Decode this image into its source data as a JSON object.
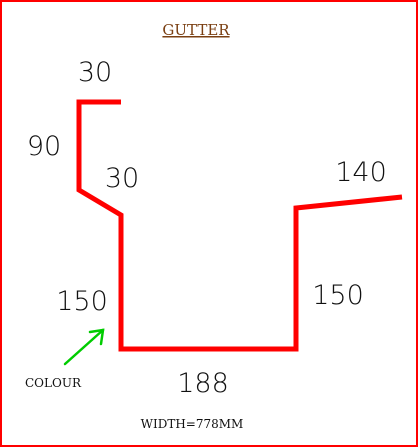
{
  "title": "GUTTER",
  "dimensions": {
    "top_return": "30",
    "left_upper": "90",
    "left_diagonal": "30",
    "left_wall": "150",
    "base": "188",
    "right_wall": "150",
    "right_flange": "140"
  },
  "colour_label": "COLOUR",
  "width_label": "WIDTH=778MM",
  "colors": {
    "border": "#ff0000",
    "profile": "#ff0000",
    "arrow": "#00cc00",
    "title": "#7a3f12",
    "text": "#111111"
  }
}
